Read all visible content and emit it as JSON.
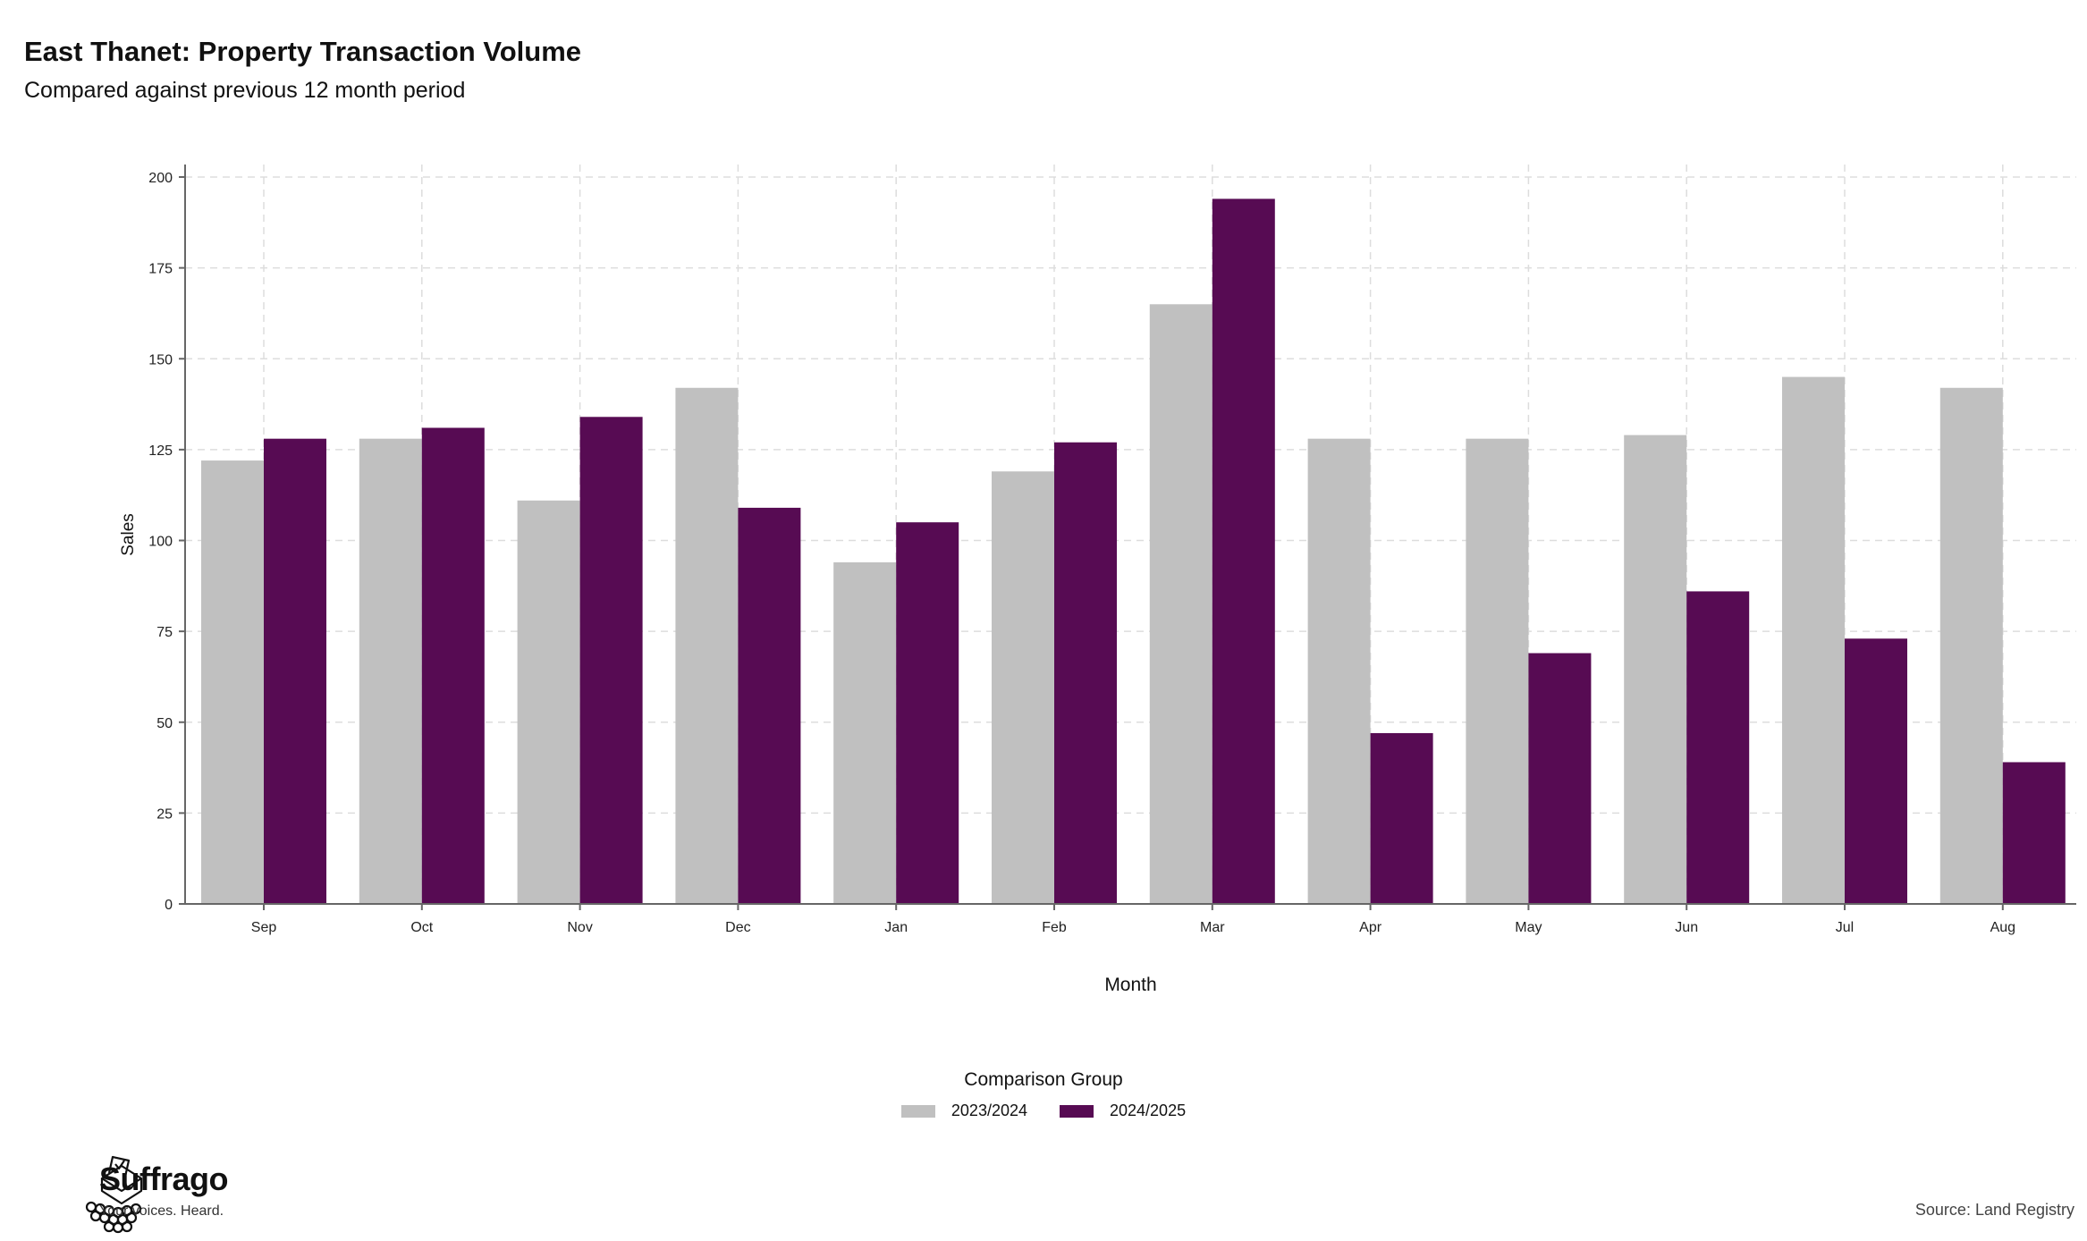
{
  "header": {
    "title": "East Thanet: Property Transaction Volume",
    "subtitle": "Compared against previous 12 month period"
  },
  "chart_data": {
    "type": "bar",
    "categories": [
      "Sep",
      "Oct",
      "Nov",
      "Dec",
      "Jan",
      "Feb",
      "Mar",
      "Apr",
      "May",
      "Jun",
      "Jul",
      "Aug"
    ],
    "series": [
      {
        "name": "2023/2024",
        "color": "#c0c0c0",
        "values": [
          122,
          128,
          111,
          142,
          94,
          119,
          165,
          128,
          128,
          129,
          145,
          142
        ]
      },
      {
        "name": "2024/2025",
        "color": "#570b53",
        "values": [
          128,
          131,
          134,
          109,
          105,
          127,
          194,
          47,
          69,
          86,
          73,
          39
        ]
      }
    ],
    "xlabel": "Month",
    "ylabel": "Sales",
    "ylim": [
      0,
      200
    ],
    "yticks": [
      0,
      25,
      50,
      75,
      100,
      125,
      150,
      175,
      200
    ],
    "grid": true,
    "legend": {
      "title": "Comparison Group",
      "placement": "bottom-center"
    }
  },
  "footer": {
    "brand_name": "Suffrago",
    "brand_tagline": "Your voices. Heard.",
    "source": "Source: Land Registry"
  }
}
